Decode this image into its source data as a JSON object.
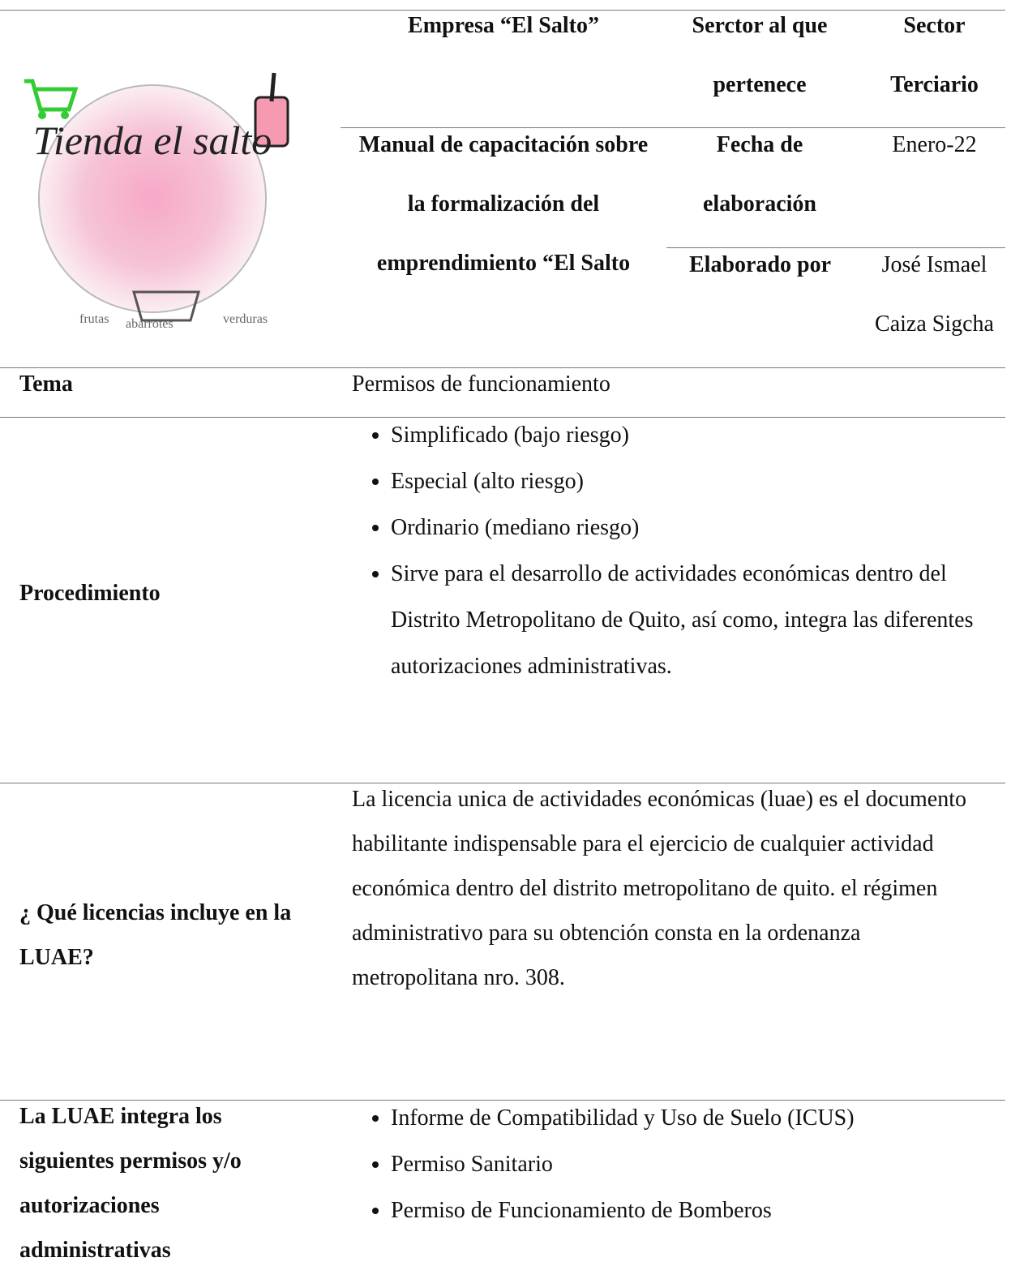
{
  "logo": {
    "title": "Tienda el salto",
    "tags": [
      "frutas",
      "abarrotes",
      "verduras"
    ]
  },
  "header": {
    "company": "Empresa “El Salto”",
    "sector_label": "Serctor al que pertenece",
    "sector_value": "Sector Terciario",
    "manual_title": "Manual de capacitación sobre la formalización del emprendimiento “El Salto",
    "date_label": "Fecha de elaboración",
    "date_value": "Enero-22",
    "author_label": "Elaborado por",
    "author_value": "José Ismael Caiza Sigcha"
  },
  "rows": [
    {
      "label": "Tema",
      "text": "Permisos  de funcionamiento"
    },
    {
      "label": "Procedimiento",
      "items": [
        "Simplificado (bajo riesgo)",
        "Especial (alto riesgo)",
        "Ordinario (mediano riesgo)",
        "Sirve para el desarrollo de actividades económicas dentro del Distrito Metropolitano de Quito, así como, integra las diferentes autorizaciones administrativas."
      ]
    },
    {
      "label": "¿ Qué licencias incluye en la LUAE?",
      "text": "La licencia unica de actividades económicas (luae) es el documento habilitante indispensable para el ejercicio de cualquier actividad económica dentro del distrito metropolitano de quito. el régimen administrativo para su obtención consta en la ordenanza metropolitana nro. 308."
    },
    {
      "label": "La LUAE integra los siguientes permisos y/o autorizaciones administrativas",
      "items": [
        "Informe de Compatibilidad y Uso de Suelo (ICUS)",
        "Permiso Sanitario",
        "Permiso de Funcionamiento de Bomberos"
      ]
    }
  ]
}
